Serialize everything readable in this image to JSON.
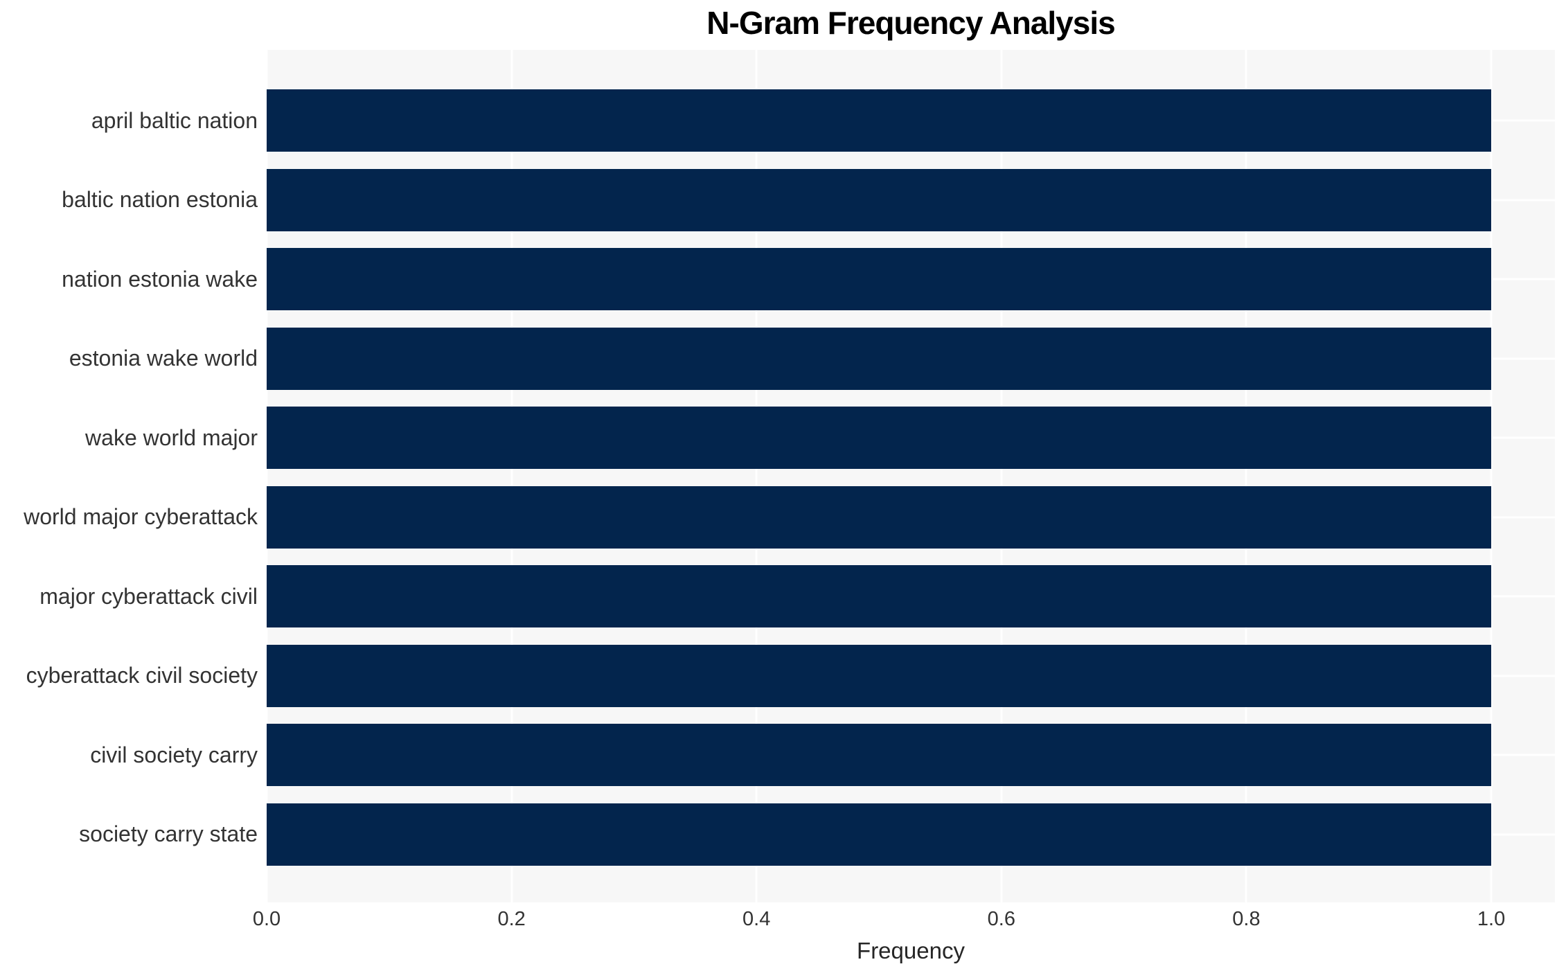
{
  "title": "N-Gram Frequency Analysis",
  "chart_data": {
    "type": "bar",
    "orientation": "horizontal",
    "title": "N-Gram Frequency Analysis",
    "categories": [
      "april baltic nation",
      "baltic nation estonia",
      "nation estonia wake",
      "estonia wake world",
      "wake world major",
      "world major cyberattack",
      "major cyberattack civil",
      "cyberattack civil society",
      "civil society carry",
      "society carry state"
    ],
    "values": [
      1.0,
      1.0,
      1.0,
      1.0,
      1.0,
      1.0,
      1.0,
      1.0,
      1.0,
      1.0
    ],
    "xlabel": "Frequency",
    "ylabel": "",
    "x_ticks": [
      0.0,
      0.2,
      0.4,
      0.6,
      0.8,
      1.0
    ],
    "x_tick_labels": [
      "0.0",
      "0.2",
      "0.4",
      "0.6",
      "0.8",
      "1.0"
    ],
    "xlim": [
      0,
      1.052
    ],
    "grid": true,
    "legend": false,
    "colors": {
      "bar": "#03254d",
      "panel_background": "#f7f7f7",
      "gridline": "#ffffff",
      "tick_text": "#333333",
      "title_text": "#000000"
    }
  }
}
